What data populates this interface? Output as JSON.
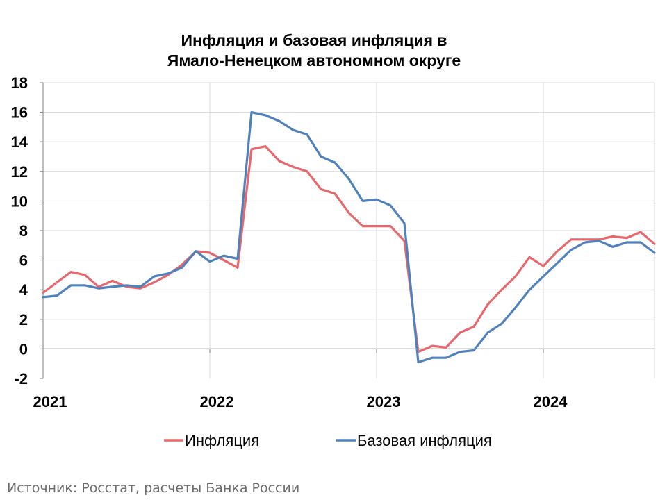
{
  "chart_data": {
    "type": "line",
    "title_lines": [
      "Инфляция и базовая инфляция в",
      "Ямало-Ненецком автономном округе"
    ],
    "x_labels": [
      "2021",
      "2022",
      "2023",
      "2024"
    ],
    "ylim": [
      -2,
      18
    ],
    "yticks": [
      -2,
      0,
      2,
      4,
      6,
      8,
      10,
      12,
      14,
      16,
      18
    ],
    "grid": true,
    "legend_position": "bottom",
    "series": [
      {
        "name": "Инфляция",
        "color": "#E8676C",
        "values": [
          3.8,
          4.5,
          5.2,
          5.0,
          4.2,
          4.6,
          4.2,
          4.1,
          4.5,
          5.0,
          5.7,
          6.6,
          6.5,
          6.0,
          5.5,
          13.5,
          13.7,
          12.7,
          12.3,
          12.0,
          10.8,
          10.5,
          9.2,
          8.3,
          8.3,
          8.3,
          7.3,
          -0.2,
          0.2,
          0.1,
          1.1,
          1.5,
          3.0,
          4.0,
          4.9,
          6.2,
          5.6,
          6.6,
          7.4,
          7.4,
          7.4,
          7.6,
          7.5,
          7.9,
          7.1
        ]
      },
      {
        "name": "Базовая инфляция",
        "color": "#4F81BD",
        "values": [
          3.5,
          3.6,
          4.3,
          4.3,
          4.1,
          4.2,
          4.3,
          4.2,
          4.9,
          5.1,
          5.5,
          6.6,
          5.9,
          6.3,
          6.1,
          16.0,
          15.8,
          15.4,
          14.8,
          14.5,
          13.0,
          12.6,
          11.5,
          10.0,
          10.1,
          9.7,
          8.5,
          -0.9,
          -0.6,
          -0.6,
          -0.2,
          -0.1,
          1.1,
          1.7,
          2.8,
          4.0,
          4.9,
          5.8,
          6.7,
          7.2,
          7.3,
          6.9,
          7.2,
          7.2,
          6.5
        ]
      }
    ]
  },
  "source": "Источник: Росстат, расчеты Банка России"
}
